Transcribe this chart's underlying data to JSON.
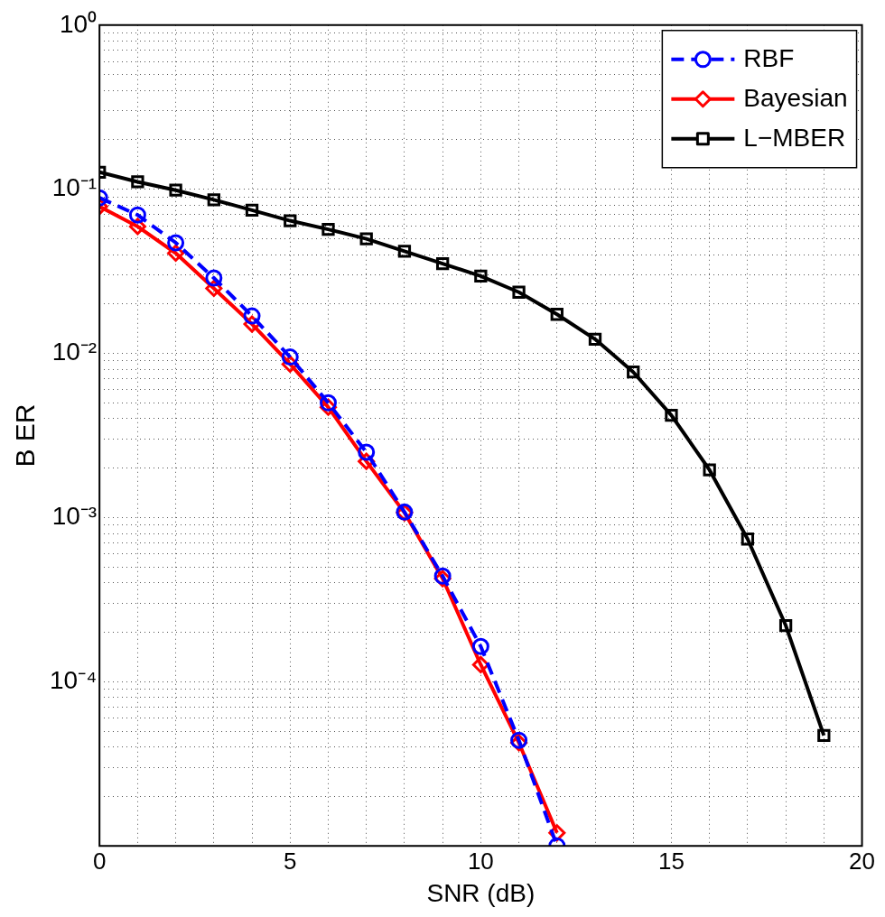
{
  "chart_data": {
    "type": "line",
    "xlabel": "SNR (dB)",
    "ylabel": "B ER",
    "log": "y",
    "grid": true,
    "legend": "top right",
    "xlim": [
      0,
      20
    ],
    "xticks": [
      0,
      {
        "value": 1,
        "label": null
      },
      {
        "value": 2,
        "label": null
      },
      {
        "value": 3,
        "label": null
      },
      {
        "value": 4,
        "label": null
      },
      5,
      {
        "value": 6,
        "label": null
      },
      {
        "value": 7,
        "label": null
      },
      {
        "value": 8,
        "label": null
      },
      {
        "value": 9,
        "label": null
      },
      10,
      {
        "value": 11,
        "label": null
      },
      {
        "value": 12,
        "label": null
      },
      {
        "value": 13,
        "label": null
      },
      {
        "value": 14,
        "label": null
      },
      15,
      {
        "value": 16,
        "label": null
      },
      {
        "value": 17,
        "label": null
      },
      {
        "value": 18,
        "label": null
      },
      {
        "value": 19,
        "label": null
      },
      20
    ],
    "ylim": [
      1e-05,
      1
    ],
    "yticks": [
      {
        "value": 1e-05,
        "label": null
      },
      {
        "value": 2e-05,
        "label": null
      },
      {
        "value": 3e-05,
        "label": null
      },
      {
        "value": 4e-05,
        "label": null
      },
      {
        "value": 5e-05,
        "label": null
      },
      {
        "value": 6e-05,
        "label": null
      },
      {
        "value": 7e-05,
        "label": null
      },
      {
        "value": 8e-05,
        "label": null
      },
      {
        "value": 9e-05,
        "label": null
      },
      {
        "value": 0.0001,
        "label": "10⁻⁴"
      },
      {
        "value": 0.0002,
        "label": null
      },
      {
        "value": 0.0003,
        "label": null
      },
      {
        "value": 0.0004,
        "label": null
      },
      {
        "value": 0.0005,
        "label": null
      },
      {
        "value": 0.0006,
        "label": null
      },
      {
        "value": 0.0007,
        "label": null
      },
      {
        "value": 0.0008,
        "label": null
      },
      {
        "value": 0.0009,
        "label": null
      },
      {
        "value": 0.001,
        "label": "10⁻³"
      },
      {
        "value": 0.002,
        "label": null
      },
      {
        "value": 0.003,
        "label": null
      },
      {
        "value": 0.004,
        "label": null
      },
      {
        "value": 0.005,
        "label": null
      },
      {
        "value": 0.006,
        "label": null
      },
      {
        "value": 0.007,
        "label": null
      },
      {
        "value": 0.008,
        "label": null
      },
      {
        "value": 0.009,
        "label": null
      },
      {
        "value": 0.01,
        "label": "10⁻²"
      },
      {
        "value": 0.02,
        "label": null
      },
      {
        "value": 0.03,
        "label": null
      },
      {
        "value": 0.04,
        "label": null
      },
      {
        "value": 0.05,
        "label": null
      },
      {
        "value": 0.06,
        "label": null
      },
      {
        "value": 0.07,
        "label": null
      },
      {
        "value": 0.08,
        "label": null
      },
      {
        "value": 0.09,
        "label": null
      },
      {
        "value": 0.1,
        "label": "10⁻¹"
      },
      {
        "value": 0.2,
        "label": null
      },
      {
        "value": 0.3,
        "label": null
      },
      {
        "value": 0.4,
        "label": null
      },
      {
        "value": 0.5,
        "label": null
      },
      {
        "value": 0.6,
        "label": null
      },
      {
        "value": 0.7,
        "label": null
      },
      {
        "value": 0.8,
        "label": null
      },
      {
        "value": 0.9,
        "label": null
      },
      {
        "value": 1,
        "label": "10⁰"
      }
    ],
    "series": [
      {
        "name": "RBF",
        "color": "#0000ff",
        "marker": "circle",
        "line_style": "dashed",
        "x": [
          0,
          1,
          2,
          3,
          4,
          5,
          6,
          7,
          8,
          9,
          10,
          11,
          12
        ],
        "values": [
          0.0887,
          0.0697,
          0.0472,
          0.0288,
          0.0169,
          0.0095,
          0.005,
          0.0025,
          0.00108,
          0.00044,
          0.000164,
          4.4e-05,
          1e-05
        ]
      },
      {
        "name": "Bayesian",
        "color": "#ff0000",
        "marker": "diamond",
        "line_style": "solid",
        "x": [
          0,
          1,
          2,
          3,
          4,
          5,
          6,
          7,
          8,
          9,
          10,
          11,
          12
        ],
        "values": [
          0.0785,
          0.0593,
          0.0408,
          0.0249,
          0.0151,
          0.0086,
          0.0047,
          0.0022,
          0.00107,
          0.000425,
          0.000127,
          4.25e-05,
          1.2e-05
        ]
      },
      {
        "name": "L−MBER",
        "color": "#000000",
        "marker": "square",
        "line_style": "solid",
        "x": [
          0,
          1,
          2,
          3,
          4,
          5,
          6,
          7,
          8,
          9,
          10,
          11,
          12,
          13,
          14,
          15,
          16,
          17,
          18,
          19
        ],
        "values": [
          0.127,
          0.111,
          0.0987,
          0.0863,
          0.0745,
          0.0643,
          0.057,
          0.0499,
          0.0419,
          0.0352,
          0.0296,
          0.0236,
          0.0173,
          0.0122,
          0.0077,
          0.0042,
          0.00195,
          0.00074,
          0.00022,
          4.7e-05
        ]
      }
    ]
  }
}
